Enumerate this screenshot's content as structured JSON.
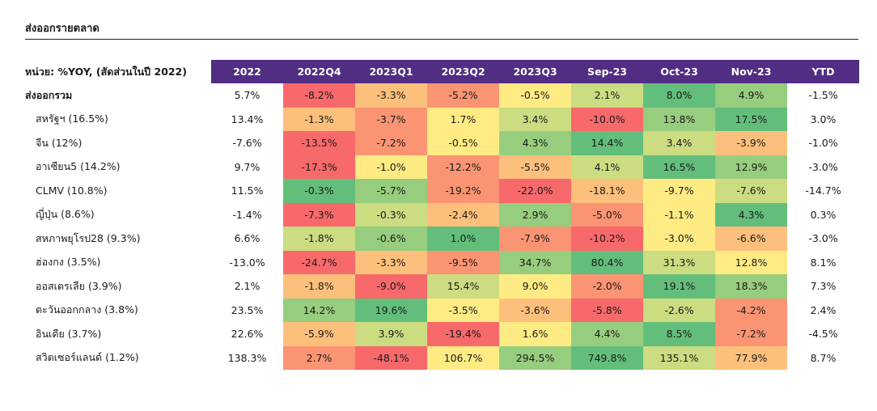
{
  "title": "ส่งออกรายตลาด",
  "unit_label": "หน่วย: %YOY, (สัดส่วนในปี 2022)",
  "chart_data": {
    "type": "heatmap",
    "columns": [
      "2022",
      "2022Q4",
      "2023Q1",
      "2023Q2",
      "2023Q3",
      "Sep-23",
      "Oct-23",
      "Nov-23",
      "YTD"
    ],
    "heat_columns": [
      "2022Q4",
      "2023Q1",
      "2023Q2",
      "2023Q3",
      "Sep-23",
      "Oct-23",
      "Nov-23"
    ],
    "color_scale": {
      "low": "#f8696b",
      "mid": "#ffeb84",
      "high": "#63be7b"
    },
    "header_color": "#512d83",
    "rows": [
      {
        "label": "ส่งออกรวม",
        "total": true,
        "values": [
          5.7,
          -8.2,
          -3.3,
          -5.2,
          -0.5,
          2.1,
          8.0,
          4.9,
          -1.5
        ],
        "display": [
          "5.7%",
          "-8.2%",
          "-3.3%",
          "-5.2%",
          "-0.5%",
          "2.1%",
          "8.0%",
          "4.9%",
          "-1.5%"
        ]
      },
      {
        "label": "สหรัฐฯ (16.5%)",
        "values": [
          13.4,
          -1.3,
          -3.7,
          1.7,
          3.4,
          -10.0,
          13.8,
          17.5,
          3.0
        ],
        "display": [
          "13.4%",
          "-1.3%",
          "-3.7%",
          "1.7%",
          "3.4%",
          "-10.0%",
          "13.8%",
          "17.5%",
          "3.0%"
        ]
      },
      {
        "label": "จีน (12%)",
        "values": [
          -7.6,
          -13.5,
          -7.2,
          -0.5,
          4.3,
          14.4,
          3.4,
          -3.9,
          -1.0
        ],
        "display": [
          "-7.6%",
          "-13.5%",
          "-7.2%",
          "-0.5%",
          "4.3%",
          "14.4%",
          "3.4%",
          "-3.9%",
          "-1.0%"
        ]
      },
      {
        "label": "อาเซียน5 (14.2%)",
        "values": [
          9.7,
          -17.3,
          -1.0,
          -12.2,
          -5.5,
          4.1,
          16.5,
          12.9,
          -3.0
        ],
        "display": [
          "9.7%",
          "-17.3%",
          "-1.0%",
          "-12.2%",
          "-5.5%",
          "4.1%",
          "16.5%",
          "12.9%",
          "-3.0%"
        ]
      },
      {
        "label": "CLMV (10.8%)",
        "values": [
          11.5,
          -0.3,
          -5.7,
          -19.2,
          -22.0,
          -18.1,
          -9.7,
          -7.6,
          -14.7
        ],
        "display": [
          "11.5%",
          "-0.3%",
          "-5.7%",
          "-19.2%",
          "-22.0%",
          "-18.1%",
          "-9.7%",
          "-7.6%",
          "-14.7%"
        ]
      },
      {
        "label": "ญี่ปุ่น (8.6%)",
        "values": [
          -1.4,
          -7.3,
          -0.3,
          -2.4,
          2.9,
          -5.0,
          -1.1,
          4.3,
          0.3
        ],
        "display": [
          "-1.4%",
          "-7.3%",
          "-0.3%",
          "-2.4%",
          "2.9%",
          "-5.0%",
          "-1.1%",
          "4.3%",
          "0.3%"
        ]
      },
      {
        "label": "สหภาพยุโรป28 (9.3%)",
        "values": [
          6.6,
          -1.8,
          -0.6,
          1.0,
          -7.9,
          -10.2,
          -3.0,
          -6.6,
          -3.0
        ],
        "display": [
          "6.6%",
          "-1.8%",
          "-0.6%",
          "1.0%",
          "-7.9%",
          "-10.2%",
          "-3.0%",
          "-6.6%",
          "-3.0%"
        ]
      },
      {
        "label": "ฮ่องกง (3.5%)",
        "values": [
          -13.0,
          -24.7,
          -3.3,
          -9.5,
          34.7,
          80.4,
          31.3,
          12.8,
          8.1
        ],
        "display": [
          "-13.0%",
          "-24.7%",
          "-3.3%",
          "-9.5%",
          "34.7%",
          "80.4%",
          "31.3%",
          "12.8%",
          "8.1%"
        ]
      },
      {
        "label": "ออสเตรเลีย (3.9%)",
        "values": [
          2.1,
          -1.8,
          -9.0,
          15.4,
          9.0,
          -2.0,
          19.1,
          18.3,
          7.3
        ],
        "display": [
          "2.1%",
          "-1.8%",
          "-9.0%",
          "15.4%",
          "9.0%",
          "-2.0%",
          "19.1%",
          "18.3%",
          "7.3%"
        ]
      },
      {
        "label": "ตะวันออกกลาง (3.8%)",
        "values": [
          23.5,
          14.2,
          19.6,
          -3.5,
          -3.6,
          -5.8,
          -2.6,
          -4.2,
          2.4
        ],
        "display": [
          "23.5%",
          "14.2%",
          "19.6%",
          "-3.5%",
          "-3.6%",
          "-5.8%",
          "-2.6%",
          "-4.2%",
          "2.4%"
        ]
      },
      {
        "label": "อินเดีย (3.7%)",
        "values": [
          22.6,
          -5.9,
          3.9,
          -19.4,
          1.6,
          4.4,
          8.5,
          -7.2,
          -4.5
        ],
        "display": [
          "22.6%",
          "-5.9%",
          "3.9%",
          "-19.4%",
          "1.6%",
          "4.4%",
          "8.5%",
          "-7.2%",
          "-4.5%"
        ]
      },
      {
        "label": "สวิตเซอร์แลนด์ (1.2%)",
        "values": [
          138.3,
          2.7,
          -48.1,
          106.7,
          294.5,
          749.8,
          135.1,
          77.9,
          8.7
        ],
        "display": [
          "138.3%",
          "2.7%",
          "-48.1%",
          "106.7%",
          "294.5%",
          "749.8%",
          "135.1%",
          "77.9%",
          "8.7%"
        ]
      }
    ]
  }
}
